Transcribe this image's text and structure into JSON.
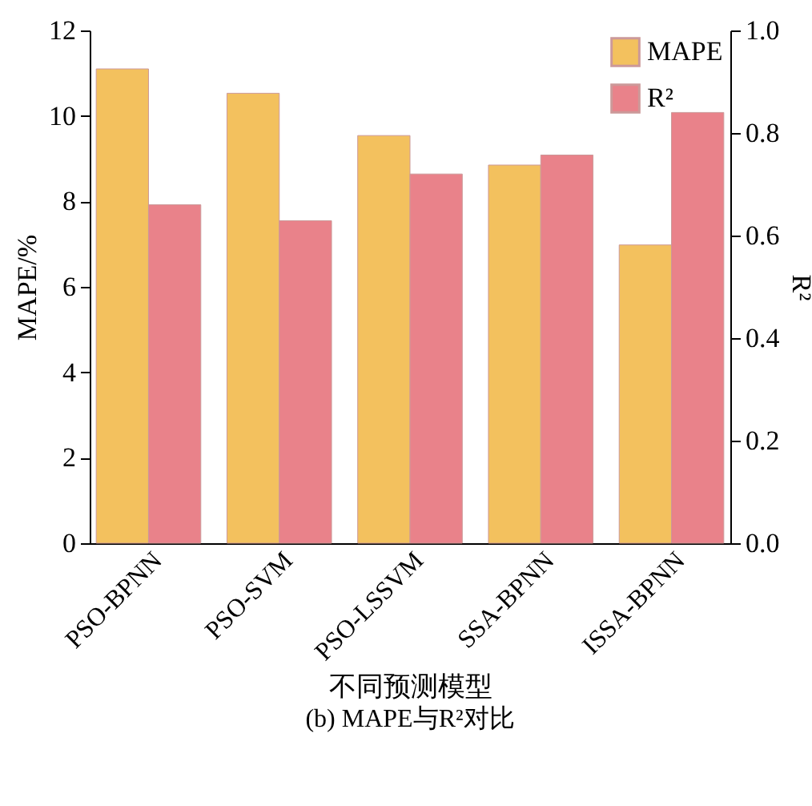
{
  "chart_data": {
    "type": "bar",
    "categories": [
      "PSO-BPNN",
      "PSO-SVM",
      "PSO-LSSVM",
      "SSA-BPNN",
      "ISSA-BPNN"
    ],
    "series": [
      {
        "name": "MAPE",
        "color": "#f3c15e",
        "values": [
          11.1,
          10.53,
          9.54,
          8.85,
          6.98
        ]
      },
      {
        "name": "R²",
        "color": "#e9828a",
        "axis": "y2",
        "values": [
          0.66,
          0.629,
          0.72,
          0.757,
          0.84
        ]
      }
    ],
    "xlabel": "不同预测模型",
    "ylabel": "MAPE/%",
    "y2label": "R²",
    "ylim": [
      0,
      12
    ],
    "yticks": [
      0,
      2,
      4,
      6,
      8,
      10,
      12
    ],
    "y2lim": [
      0,
      1
    ],
    "y2ticks": [
      {
        "value": 0,
        "label": "0.0"
      },
      {
        "value": 0.2,
        "label": "0.2"
      },
      {
        "value": 0.4,
        "label": "0.4"
      },
      {
        "value": 0.6,
        "label": "0.6"
      },
      {
        "value": 0.8,
        "label": "0.8"
      },
      {
        "value": 1,
        "label": "1.0"
      }
    ],
    "annotations": [
      "(b) MAPE与R²对比"
    ],
    "legend": "top right",
    "grid": false
  }
}
